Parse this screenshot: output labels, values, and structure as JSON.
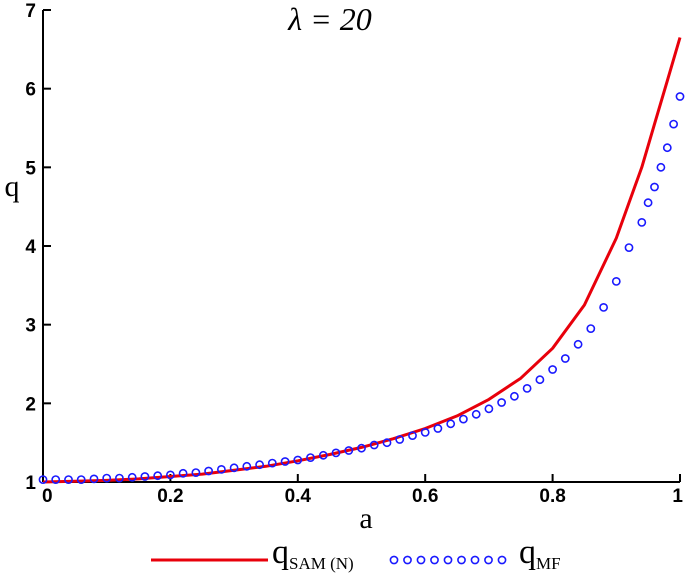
{
  "chart_data": {
    "type": "line",
    "title": "λ = 20",
    "xlabel": "a",
    "ylabel": "q",
    "xlim": [
      0,
      1
    ],
    "ylim": [
      1,
      7
    ],
    "x_ticks": [
      "0",
      "0.2",
      "0.4",
      "0.6",
      "0.8",
      "1"
    ],
    "y_ticks": [
      "1",
      "2",
      "3",
      "4",
      "5",
      "6",
      "7"
    ],
    "grid": false,
    "legend_placement": "bottom",
    "series": [
      {
        "name": "q",
        "name_subscript": "SAM (N)",
        "style": "line",
        "color": "#e8000b",
        "x": [
          0,
          0.05,
          0.1,
          0.15,
          0.2,
          0.25,
          0.3,
          0.35,
          0.4,
          0.45,
          0.5,
          0.55,
          0.6,
          0.65,
          0.7,
          0.75,
          0.8,
          0.85,
          0.9,
          0.92,
          0.94,
          0.96,
          0.98,
          1.0
        ],
        "y": [
          1.0,
          1.01,
          1.02,
          1.04,
          1.07,
          1.1,
          1.15,
          1.2,
          1.27,
          1.35,
          1.44,
          1.55,
          1.68,
          1.84,
          2.05,
          2.32,
          2.7,
          3.25,
          4.1,
          4.55,
          5.0,
          5.55,
          6.1,
          6.65
        ]
      },
      {
        "name": "q",
        "name_subscript": "MF",
        "style": "markers",
        "color": "#1a1aff",
        "x": [
          0,
          0.02,
          0.04,
          0.06,
          0.08,
          0.1,
          0.12,
          0.14,
          0.16,
          0.18,
          0.2,
          0.22,
          0.24,
          0.26,
          0.28,
          0.3,
          0.32,
          0.34,
          0.36,
          0.38,
          0.4,
          0.42,
          0.44,
          0.46,
          0.48,
          0.5,
          0.52,
          0.54,
          0.56,
          0.58,
          0.6,
          0.62,
          0.64,
          0.66,
          0.68,
          0.7,
          0.72,
          0.74,
          0.76,
          0.78,
          0.8,
          0.82,
          0.84,
          0.86,
          0.88,
          0.9,
          0.92,
          0.94,
          0.95,
          0.96,
          0.97,
          0.98,
          0.99,
          1.0
        ],
        "y": [
          1.03,
          1.03,
          1.03,
          1.03,
          1.04,
          1.05,
          1.05,
          1.06,
          1.07,
          1.08,
          1.09,
          1.11,
          1.12,
          1.14,
          1.16,
          1.18,
          1.2,
          1.22,
          1.24,
          1.26,
          1.28,
          1.31,
          1.34,
          1.37,
          1.4,
          1.43,
          1.47,
          1.5,
          1.54,
          1.59,
          1.63,
          1.68,
          1.74,
          1.8,
          1.86,
          1.93,
          2.01,
          2.09,
          2.19,
          2.3,
          2.43,
          2.57,
          2.75,
          2.95,
          3.22,
          3.55,
          3.98,
          4.3,
          4.55,
          4.75,
          5.0,
          5.25,
          5.55,
          5.9
        ]
      }
    ]
  }
}
